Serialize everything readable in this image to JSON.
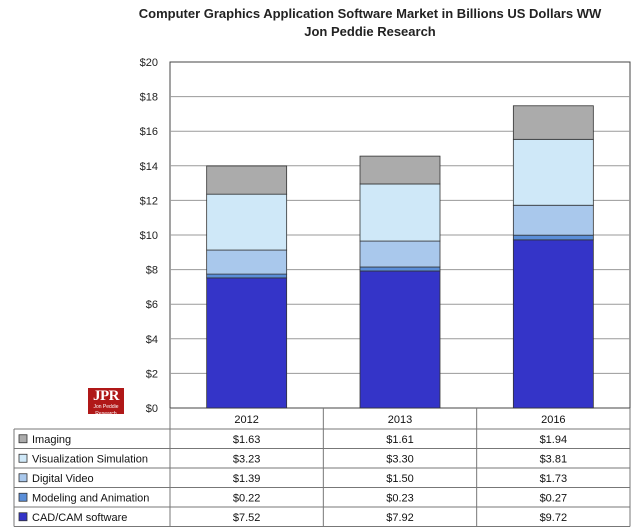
{
  "chart_data": {
    "type": "bar",
    "stacked": true,
    "title": "Computer Graphics Application Software Market in Billions US Dollars WW",
    "subtitle": "Jon Peddie Research",
    "categories": [
      "2012",
      "2013",
      "2016"
    ],
    "ylim": [
      0,
      20
    ],
    "yticks": [
      "$0",
      "$2",
      "$4",
      "$6",
      "$8",
      "$10",
      "$12",
      "$14",
      "$16",
      "$18",
      "$20"
    ],
    "yticks_values": [
      0,
      2,
      4,
      6,
      8,
      10,
      12,
      14,
      16,
      18,
      20
    ],
    "grid": true,
    "series": [
      {
        "name": "CAD/CAM software",
        "values": [
          7.52,
          7.92,
          9.72
        ],
        "labels": [
          "$7.52",
          "$7.92",
          "$9.72"
        ],
        "color": "#3434c8"
      },
      {
        "name": "Modeling and Animation",
        "values": [
          0.22,
          0.23,
          0.27
        ],
        "labels": [
          "$0.22",
          "$0.23",
          "$0.27"
        ],
        "color": "#5a8ed8"
      },
      {
        "name": "Digital Video",
        "values": [
          1.39,
          1.5,
          1.73
        ],
        "labels": [
          "$1.39",
          "$1.50",
          "$1.73"
        ],
        "color": "#a9c8ec"
      },
      {
        "name": "Visualization Simulation",
        "values": [
          3.23,
          3.3,
          3.81
        ],
        "labels": [
          "$3.23",
          "$3.30",
          "$3.81"
        ],
        "color": "#cfe8f8"
      },
      {
        "name": "Imaging",
        "values": [
          1.63,
          1.61,
          1.94
        ],
        "labels": [
          "$1.63",
          "$1.61",
          "$1.94"
        ],
        "color": "#ababab"
      }
    ]
  },
  "logo": {
    "text": "JPR",
    "subtext": "Jon Peddie Research"
  }
}
